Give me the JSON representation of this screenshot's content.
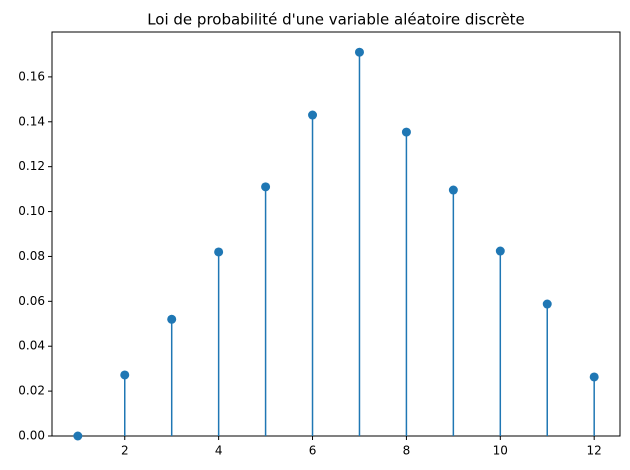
{
  "chart_data": {
    "type": "stem",
    "title": "Loi de probabilité d'une variable aléatoire discrète",
    "x": [
      1,
      2,
      3,
      4,
      5,
      6,
      7,
      8,
      9,
      10,
      11,
      12
    ],
    "values": [
      0,
      0.0272,
      0.052,
      0.082,
      0.111,
      0.143,
      0.171,
      0.1354,
      0.1096,
      0.0824,
      0.0588,
      0.0263
    ],
    "color": "#1f77b4",
    "xlim": [
      0.45,
      12.55
    ],
    "xticks": [
      2,
      4,
      6,
      8,
      10,
      12
    ],
    "ylim": [
      0,
      0.18
    ],
    "yticks": [
      {
        "value": 0,
        "label": "0.00"
      },
      {
        "value": 0.02,
        "label": "0.02"
      },
      {
        "value": 0.04,
        "label": "0.04"
      },
      {
        "value": 0.06,
        "label": "0.06"
      },
      {
        "value": 0.08,
        "label": "0.08"
      },
      {
        "value": 0.1,
        "label": "0.10"
      },
      {
        "value": 0.12,
        "label": "0.12"
      },
      {
        "value": 0.14,
        "label": "0.14"
      },
      {
        "value": 0.16,
        "label": "0.16"
      }
    ]
  }
}
